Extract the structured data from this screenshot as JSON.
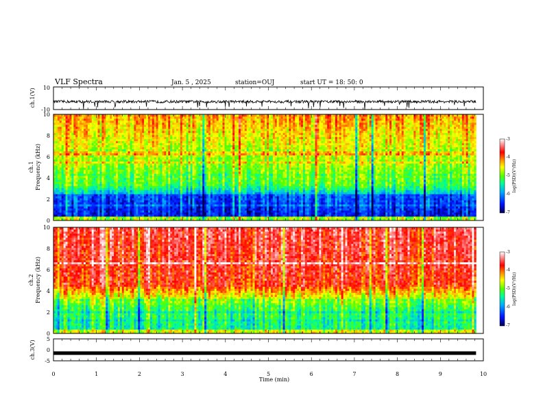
{
  "header": {
    "title": "VLF Spectra",
    "date": "Jan. 5 , 2025",
    "station": "station=OUJ",
    "start_ut": "start UT = 18: 50: 0"
  },
  "colors": {
    "spectrogram_scale": [
      "#00007a",
      "#0022ff",
      "#00aaff",
      "#00ffaa",
      "#55ff00",
      "#ffff00",
      "#ff8800",
      "#ff0000",
      "#ff9999",
      "#ffffff"
    ],
    "trace": "#000000"
  },
  "chart_data": [
    {
      "type": "line",
      "name": "ch1-waveform",
      "ylabel": "ch.1(V)",
      "ylim": [
        -10,
        10
      ],
      "yticks": [
        "10",
        "-10"
      ],
      "xlim": [
        0,
        10
      ],
      "x_extent": [
        0,
        9.83
      ],
      "baseline": -3,
      "noise_amplitude": 1.2
    },
    {
      "type": "heatmap",
      "name": "ch1-spectrogram",
      "ylabel_line1": "ch.1",
      "ylabel_line2": "Frequency (kHz)",
      "ylim": [
        0,
        10
      ],
      "yticks": [
        "0",
        "2",
        "4",
        "6",
        "8",
        "10"
      ],
      "xlim": [
        0,
        10
      ],
      "x_extent": [
        0,
        9.83
      ],
      "colorbar": {
        "label": "log(PSD)(V²/Hz)",
        "ticks": [
          "-3",
          "-4",
          "-5",
          "-6",
          "-7"
        ],
        "range": [
          -7,
          -3
        ]
      }
    },
    {
      "type": "heatmap",
      "name": "ch2-spectrogram",
      "ylabel_line1": "ch.2",
      "ylabel_line2": "Frequency (kHz)",
      "ylim": [
        0,
        10
      ],
      "yticks": [
        "0",
        "2",
        "4",
        "6",
        "8",
        "10"
      ],
      "xlim": [
        0,
        10
      ],
      "x_extent": [
        0,
        9.83
      ],
      "colorbar": {
        "label": "log(PSD)(V²/Hz)",
        "ticks": [
          "-3",
          "-4",
          "-5",
          "-6",
          "-7"
        ],
        "range": [
          -7,
          -3
        ]
      }
    },
    {
      "type": "line",
      "name": "ch3-waveform",
      "ylabel": "ch.3(V)",
      "ylim": [
        -5,
        5
      ],
      "yticks": [
        "5",
        "0",
        "-5"
      ],
      "xlim": [
        0,
        10
      ],
      "x_extent": [
        0,
        9.83
      ],
      "baseline": -1.5,
      "noise_amplitude": 0.2
    }
  ],
  "xaxis": {
    "label": "Time (min)",
    "ticks": [
      "0",
      "1",
      "2",
      "3",
      "4",
      "5",
      "6",
      "7",
      "8",
      "9",
      "10"
    ]
  }
}
